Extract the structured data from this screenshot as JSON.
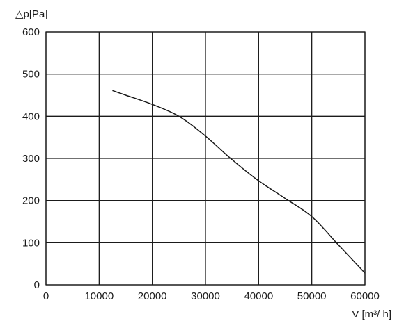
{
  "chart_data": {
    "type": "line",
    "title": "",
    "xlabel": "V [m³/ h]",
    "ylabel": "△p[Pa]",
    "xlim": [
      0,
      60000
    ],
    "ylim": [
      0,
      600
    ],
    "x_ticks": [
      0,
      10000,
      20000,
      30000,
      40000,
      50000,
      60000
    ],
    "y_ticks": [
      0,
      100,
      200,
      300,
      400,
      500,
      600
    ],
    "x_tick_labels": [
      "0",
      "10000",
      "20000",
      "30000",
      "40000",
      "50000",
      "60000"
    ],
    "y_tick_labels": [
      "0",
      "100",
      "200",
      "300",
      "400",
      "500",
      "600"
    ],
    "grid": true,
    "series": [
      {
        "color": "#1a1a1a",
        "x": [
          12500,
          15000,
          20000,
          25000,
          30000,
          35000,
          40000,
          45000,
          50000,
          55000,
          60000
        ],
        "y": [
          461,
          450,
          428,
          400,
          353,
          297,
          247,
          205,
          162,
          95,
          28
        ]
      }
    ]
  }
}
